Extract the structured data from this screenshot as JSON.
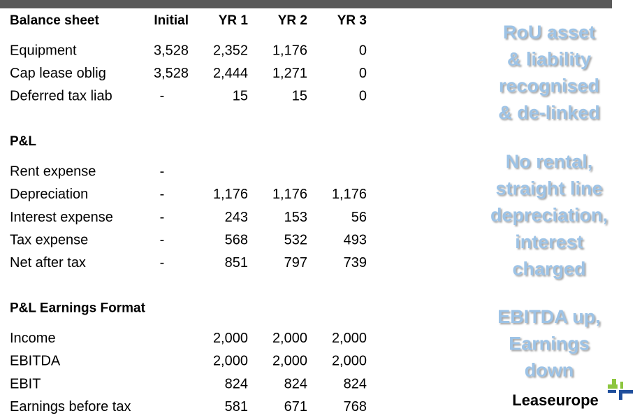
{
  "table": {
    "header": [
      "Balance sheet",
      "Initial",
      "YR 1",
      "YR 2",
      "YR 3"
    ],
    "rows": [
      [
        "Equipment",
        "3,528",
        "2,352",
        "1,176",
        "0"
      ],
      [
        "Cap lease oblig",
        "3,528",
        "2,444",
        "1,271",
        "0"
      ],
      [
        "Deferred tax liab",
        "-",
        "15",
        "15",
        "0"
      ]
    ],
    "sections": [
      {
        "title": "P&L",
        "rows": [
          [
            "Rent expense",
            "-",
            null,
            null,
            null
          ],
          [
            "Depreciation",
            "-",
            "1,176",
            "1,176",
            "1,176"
          ],
          [
            "Interest expense",
            "-",
            "243",
            "153",
            "56"
          ],
          [
            "Tax expense",
            "-",
            "568",
            "532",
            "493"
          ],
          [
            "Net after tax",
            "-",
            "851",
            "797",
            "739"
          ]
        ]
      },
      {
        "title": "P&L Earnings Format",
        "rows": [
          [
            "Income",
            null,
            "2,000",
            "2,000",
            "2,000"
          ],
          [
            "EBITDA",
            null,
            "2,000",
            "2,000",
            "2,000"
          ],
          [
            "EBIT",
            null,
            "824",
            "824",
            "824"
          ],
          [
            "Earnings before tax",
            null,
            "581",
            "671",
            "768"
          ]
        ]
      }
    ]
  },
  "notes": [
    [
      "RoU asset",
      "& liability",
      "recognised",
      "& de-linked"
    ],
    [
      "No rental,",
      "straight line",
      "depreciation,",
      "interest",
      "charged"
    ],
    [
      "EBITDA up,",
      "Earnings",
      "down"
    ]
  ],
  "logo": "Leaseurope"
}
